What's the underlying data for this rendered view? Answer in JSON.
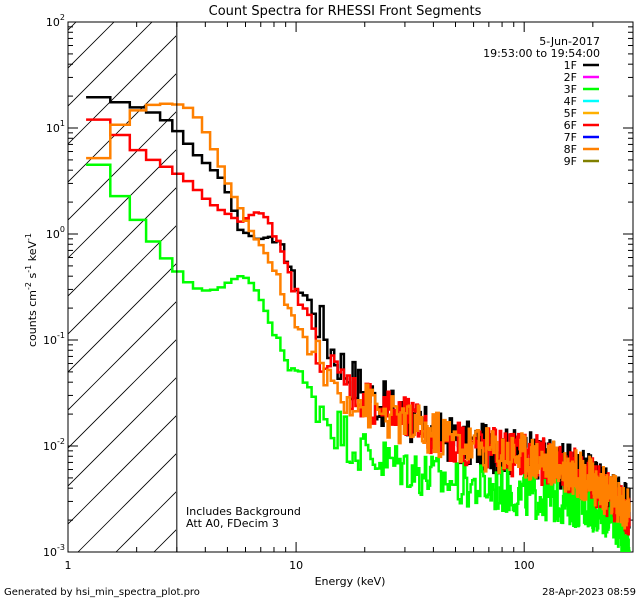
{
  "chart_data": {
    "type": "line",
    "title": "Count Spectra for RHESSI Front Segments",
    "xlabel": "Energy (keV)",
    "ylabel_base": "counts cm",
    "ylabel_exp1": "-2",
    "ylabel_mid": " s",
    "ylabel_exp2": "-1",
    "ylabel_mid2": " keV",
    "ylabel_exp3": "-1",
    "xscale": "log",
    "yscale": "log",
    "xlim": [
      1,
      300
    ],
    "ylim": [
      0.001,
      100
    ],
    "x_ticks": [
      {
        "value": 1,
        "label": "1"
      },
      {
        "value": 10,
        "label": "10"
      },
      {
        "value": 100,
        "label": "100"
      }
    ],
    "y_ticks": [
      {
        "value": 0.001,
        "base": "10",
        "exp": "-3"
      },
      {
        "value": 0.01,
        "base": "10",
        "exp": "-2"
      },
      {
        "value": 0.1,
        "base": "10",
        "exp": "-1"
      },
      {
        "value": 1,
        "base": "10",
        "exp": "0"
      },
      {
        "value": 10,
        "base": "10",
        "exp": "1"
      },
      {
        "value": 100,
        "base": "10",
        "exp": "2"
      }
    ],
    "attenuator_threshold_kev": 3,
    "date": "5-Jun-2017",
    "time_range": "19:53:00 to 19:54:00",
    "legend_position": "top-right",
    "legend": [
      {
        "label": "1F",
        "color": "#000000"
      },
      {
        "label": "2F",
        "color": "#ff00ff"
      },
      {
        "label": "3F",
        "color": "#00ff00"
      },
      {
        "label": "4F",
        "color": "#00ffff"
      },
      {
        "label": "5F",
        "color": "#ffb000"
      },
      {
        "label": "6F",
        "color": "#ff0000"
      },
      {
        "label": "7F",
        "color": "#0000ff"
      },
      {
        "label": "8F",
        "color": "#ff8000"
      },
      {
        "label": "9F",
        "color": "#808000"
      }
    ],
    "annotation_line1": "Includes Background",
    "annotation_line2": "Att A0, FDecim 3",
    "series": [
      {
        "name": "1F",
        "color": "#000000",
        "x": [
          1.2,
          1.4,
          1.6,
          1.9,
          2.2,
          2.6,
          3.0,
          3.3,
          3.6,
          4.0,
          4.5,
          5.0,
          5.5,
          6.0,
          6.5,
          7.0,
          7.5,
          8.0,
          8.5,
          9.0,
          10,
          11,
          12,
          13,
          14,
          16,
          18,
          20,
          23,
          26,
          30,
          35,
          40,
          45,
          50,
          60,
          70,
          80,
          100,
          120,
          150,
          180,
          210,
          250,
          290
        ],
        "y": [
          19.5,
          18.5,
          17,
          15.5,
          14,
          11.5,
          8.5,
          6.5,
          5.3,
          4.4,
          3.5,
          2.2,
          1.1,
          1.0,
          0.9,
          0.9,
          0.95,
          0.8,
          0.72,
          0.58,
          0.3,
          0.25,
          0.17,
          0.12,
          0.085,
          0.055,
          0.04,
          0.032,
          0.026,
          0.022,
          0.018,
          0.015,
          0.013,
          0.012,
          0.011,
          0.01,
          0.0095,
          0.009,
          0.0085,
          0.0075,
          0.0065,
          0.0055,
          0.0045,
          0.0035,
          0.0025
        ]
      },
      {
        "name": "3F",
        "color": "#00ff00",
        "x": [
          1.2,
          1.4,
          1.6,
          1.9,
          2.2,
          2.6,
          3.0,
          3.3,
          3.6,
          4.0,
          4.5,
          5.0,
          5.5,
          6.0,
          6.5,
          7.0,
          7.5,
          8.0,
          8.5,
          9.0,
          10,
          11,
          12,
          13,
          14,
          16,
          18,
          20,
          23,
          26,
          30,
          35,
          40,
          45,
          50,
          60,
          70,
          80,
          100,
          120,
          150,
          180,
          210,
          250,
          290
        ],
        "y": [
          4.5,
          3.0,
          2.0,
          1.3,
          0.85,
          0.55,
          0.4,
          0.33,
          0.3,
          0.29,
          0.31,
          0.36,
          0.4,
          0.38,
          0.3,
          0.22,
          0.15,
          0.1,
          0.085,
          0.06,
          0.05,
          0.035,
          0.028,
          0.022,
          0.017,
          0.013,
          0.01,
          0.0085,
          0.0075,
          0.007,
          0.0065,
          0.0055,
          0.005,
          0.0048,
          0.0045,
          0.0042,
          0.004,
          0.0038,
          0.0035,
          0.0033,
          0.003,
          0.0028,
          0.0025,
          0.002,
          0.0012
        ]
      },
      {
        "name": "6F",
        "color": "#ff0000",
        "x": [
          1.2,
          1.4,
          1.6,
          1.9,
          2.2,
          2.6,
          3.0,
          3.3,
          3.6,
          4.0,
          4.5,
          5.0,
          5.5,
          6.0,
          6.5,
          7.0,
          7.5,
          8.0,
          8.5,
          9.0,
          10,
          11,
          12,
          13,
          14,
          16,
          18,
          20,
          23,
          26,
          30,
          35,
          40,
          45,
          50,
          60,
          70,
          80,
          100,
          120,
          150,
          180,
          210,
          250,
          290
        ],
        "y": [
          12,
          10,
          8.0,
          6.0,
          5.0,
          4.2,
          3.5,
          3.0,
          2.5,
          2.0,
          1.7,
          1.5,
          1.3,
          1.45,
          1.6,
          1.55,
          1.3,
          0.85,
          0.65,
          0.45,
          0.25,
          0.17,
          0.11,
          0.07,
          0.05,
          0.04,
          0.032,
          0.028,
          0.024,
          0.02,
          0.017,
          0.015,
          0.013,
          0.012,
          0.011,
          0.01,
          0.0092,
          0.0088,
          0.0082,
          0.0072,
          0.0062,
          0.0052,
          0.0043,
          0.0032,
          0.002
        ]
      },
      {
        "name": "8F",
        "color": "#ff8000",
        "x": [
          1.2,
          1.4,
          1.6,
          1.9,
          2.2,
          2.6,
          3.0,
          3.3,
          3.6,
          4.0,
          4.5,
          5.0,
          5.5,
          6.0,
          6.5,
          7.0,
          7.5,
          8.0,
          8.5,
          9.0,
          10,
          11,
          12,
          13,
          14,
          16,
          18,
          20,
          23,
          26,
          30,
          35,
          40,
          45,
          50,
          60,
          70,
          80,
          100,
          120,
          150,
          180,
          210,
          250,
          290
        ],
        "y": [
          5.2,
          8.5,
          12,
          15,
          16.5,
          17,
          16.5,
          15,
          12,
          8.0,
          4.5,
          2.6,
          1.8,
          1.2,
          0.9,
          0.75,
          0.55,
          0.42,
          0.3,
          0.22,
          0.13,
          0.09,
          0.065,
          0.05,
          0.04,
          0.033,
          0.028,
          0.024,
          0.021,
          0.018,
          0.016,
          0.014,
          0.013,
          0.012,
          0.011,
          0.01,
          0.0092,
          0.0088,
          0.0082,
          0.0072,
          0.0062,
          0.0052,
          0.0042,
          0.0032,
          0.0022
        ]
      }
    ]
  },
  "footer": {
    "generated_by": "Generated by hsi_min_spectra_plot.pro",
    "timestamp": "28-Apr-2023 08:59"
  }
}
